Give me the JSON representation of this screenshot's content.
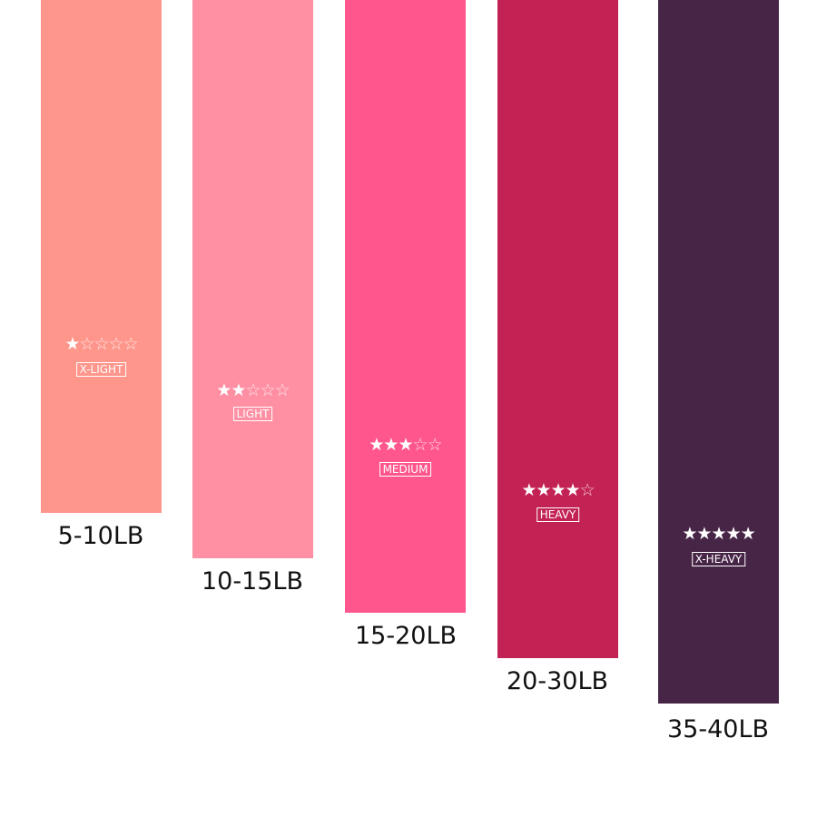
{
  "bands": [
    {
      "weight": "5-10LB",
      "level": "X-LIGHT",
      "rating": 1,
      "max_rating": 5,
      "color": "#FF968C"
    },
    {
      "weight": "10-15LB",
      "level": "LIGHT",
      "rating": 2,
      "max_rating": 5,
      "color": "#FF90A4"
    },
    {
      "weight": "15-20LB",
      "level": "MEDIUM",
      "rating": 3,
      "max_rating": 5,
      "color": "#FF578D"
    },
    {
      "weight": "20-30LB",
      "level": "HEAVY",
      "rating": 4,
      "max_rating": 5,
      "color": "#C32254"
    },
    {
      "weight": "35-40LB",
      "level": "X-HEAVY",
      "rating": 5,
      "max_rating": 5,
      "color": "#472547"
    }
  ]
}
